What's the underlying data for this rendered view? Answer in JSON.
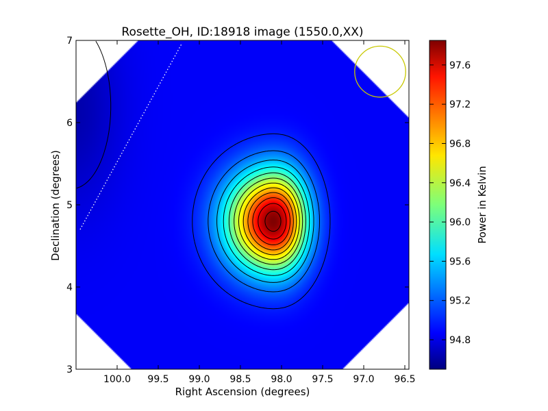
{
  "chart_data": {
    "type": "heatmap",
    "title": "Rosette_OH, ID:18918 image (1550.0,XX)",
    "xlabel": "Right Ascension (degrees)",
    "ylabel": "Declination (degrees)",
    "xlim": [
      100.5,
      96.45
    ],
    "ylim": [
      3,
      7
    ],
    "xticks": [
      "100.0",
      "99.5",
      "99.0",
      "98.5",
      "98.0",
      "97.5",
      "97.0",
      "96.5"
    ],
    "yticks": [
      "3",
      "4",
      "5",
      "6",
      "7"
    ],
    "colorbar": {
      "label": "Power in Kelvin",
      "range": [
        94.5,
        97.85
      ],
      "ticks": [
        "94.8",
        "95.2",
        "95.6",
        "96.0",
        "96.4",
        "96.8",
        "97.2",
        "97.6"
      ],
      "colormap": "jet"
    },
    "peak": {
      "ra": 98.1,
      "dec": 4.8,
      "value": 97.85
    },
    "background_level": 94.9,
    "low_region_value": 94.6,
    "contour_count": 13,
    "beam": {
      "ra": 96.8,
      "dec": 6.62,
      "radius_deg": 0.31,
      "color": "#c8c800"
    },
    "dotted_line": {
      "from": [
        100.45,
        4.7
      ],
      "to": [
        99.22,
        6.95
      ],
      "color": "#ffffff"
    },
    "blank_corners": "white"
  }
}
